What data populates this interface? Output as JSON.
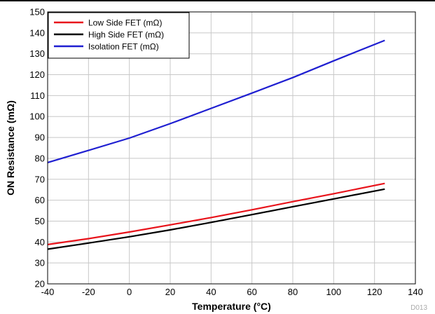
{
  "chart_data": {
    "type": "line",
    "xlabel": "Temperature (°C)",
    "ylabel": "ON Resistance (mΩ)",
    "xlim": [
      -40,
      140
    ],
    "ylim": [
      20,
      150
    ],
    "xticks": [
      -40,
      -20,
      0,
      20,
      40,
      60,
      80,
      100,
      120,
      140
    ],
    "yticks": [
      20,
      30,
      40,
      50,
      60,
      70,
      80,
      90,
      100,
      110,
      120,
      130,
      140,
      150
    ],
    "grid": true,
    "legend_position": "top-left",
    "series": [
      {
        "name": "Low Side FET (mΩ)",
        "color": "#e8131b",
        "x": [
          -40,
          -20,
          0,
          20,
          40,
          60,
          80,
          100,
          125
        ],
        "y": [
          38.8,
          41.6,
          44.8,
          48.2,
          51.7,
          55.4,
          59.3,
          63.1,
          68.0
        ]
      },
      {
        "name": "High Side FET (mΩ)",
        "color": "#000000",
        "x": [
          -40,
          -20,
          0,
          20,
          40,
          60,
          80,
          100,
          125
        ],
        "y": [
          36.6,
          39.5,
          42.5,
          45.8,
          49.4,
          53.1,
          56.9,
          60.6,
          65.3
        ]
      },
      {
        "name": "Isolation FET (mΩ)",
        "color": "#1f1fd1",
        "x": [
          -40,
          -20,
          0,
          20,
          40,
          60,
          80,
          100,
          125
        ],
        "y": [
          78.0,
          83.8,
          89.7,
          96.6,
          103.9,
          111.2,
          118.6,
          126.6,
          136.4
        ]
      }
    ]
  },
  "figure_code": "D013"
}
